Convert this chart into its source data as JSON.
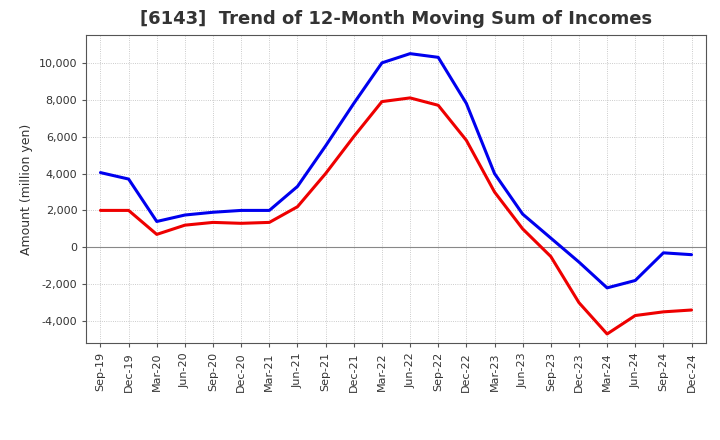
{
  "title": "[6143]  Trend of 12-Month Moving Sum of Incomes",
  "ylabel": "Amount (million yen)",
  "x_labels": [
    "Sep-19",
    "Dec-19",
    "Mar-20",
    "Jun-20",
    "Sep-20",
    "Dec-20",
    "Mar-21",
    "Jun-21",
    "Sep-21",
    "Dec-21",
    "Mar-22",
    "Jun-22",
    "Sep-22",
    "Dec-22",
    "Mar-23",
    "Jun-23",
    "Sep-23",
    "Dec-23",
    "Mar-24",
    "Jun-24",
    "Sep-24",
    "Dec-24"
  ],
  "ordinary_income": [
    4050,
    3700,
    1400,
    1750,
    1900,
    2000,
    2000,
    3300,
    5500,
    7800,
    10000,
    10500,
    10300,
    7800,
    4000,
    1800,
    500,
    -800,
    -2200,
    -1800,
    -300,
    -400
  ],
  "net_income": [
    2000,
    2000,
    700,
    1200,
    1350,
    1300,
    1350,
    2200,
    4000,
    6000,
    7900,
    8100,
    7700,
    5800,
    3000,
    1000,
    -500,
    -3000,
    -4700,
    -3700,
    -3500,
    -3400
  ],
  "ordinary_color": "#0000ee",
  "net_color": "#ee0000",
  "background_color": "#ffffff",
  "plot_bg_color": "#ffffff",
  "grid_color": "#aaaaaa",
  "ylim": [
    -5200,
    11500
  ],
  "yticks": [
    -4000,
    -2000,
    0,
    2000,
    4000,
    6000,
    8000,
    10000
  ],
  "line_width": 2.2,
  "title_fontsize": 13,
  "title_color": "#333333",
  "legend_fontsize": 9,
  "ylabel_fontsize": 9,
  "tick_fontsize": 8
}
